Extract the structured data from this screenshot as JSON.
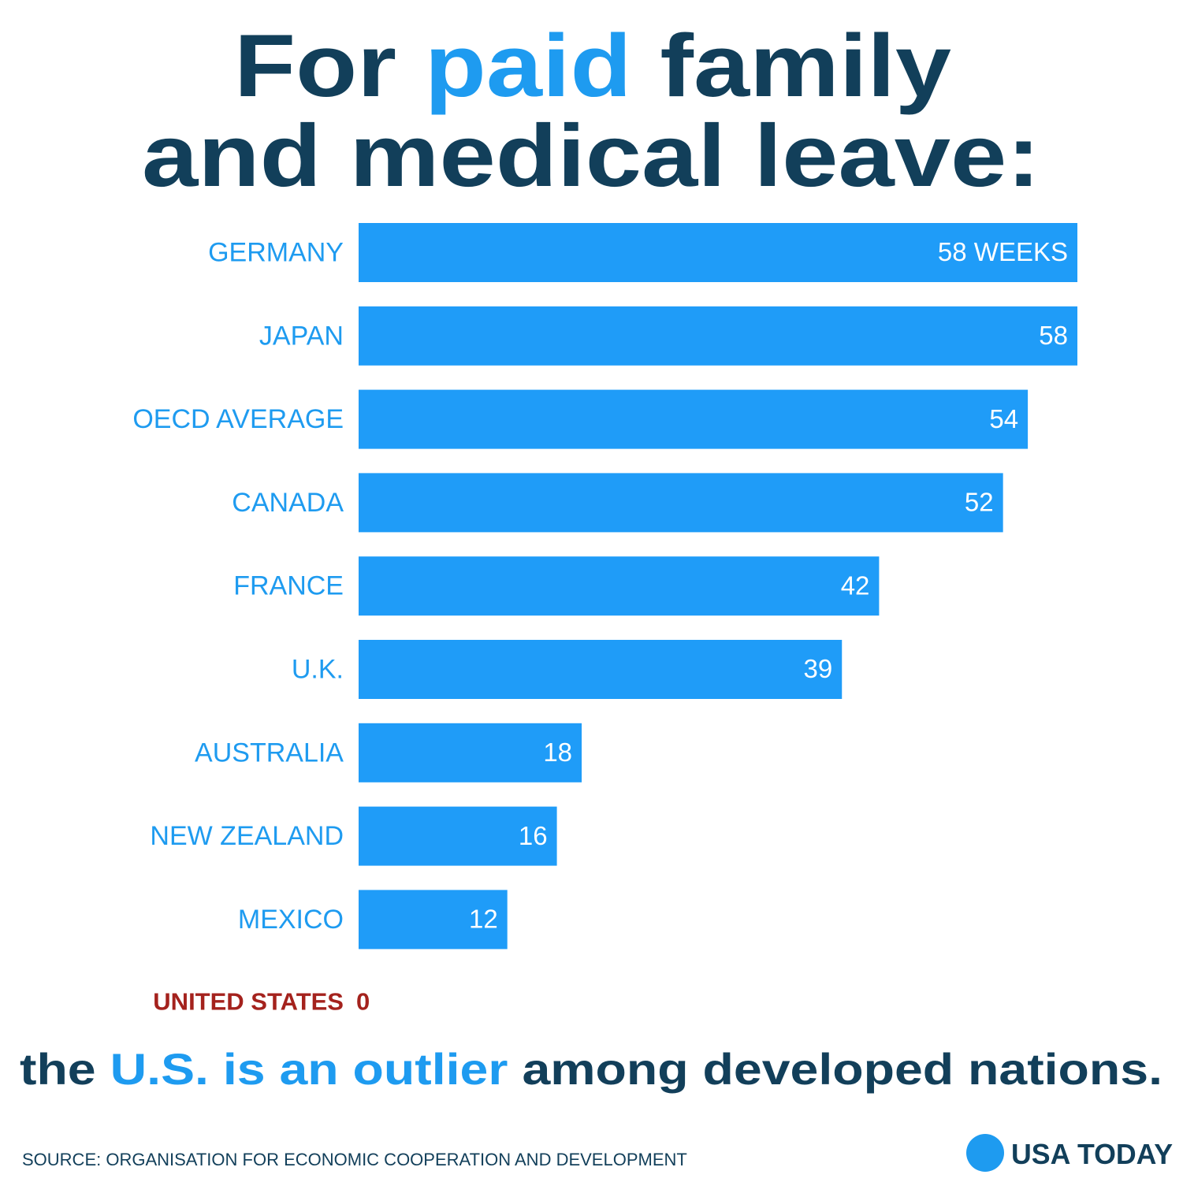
{
  "chart_data": {
    "type": "bar",
    "orientation": "horizontal",
    "title": [
      [
        {
          "text": "For",
          "highlight": false
        },
        {
          "text": "paid",
          "highlight": true
        },
        {
          "text": "family",
          "highlight": false
        }
      ],
      [
        {
          "text": "and medical leave:",
          "highlight": false
        }
      ]
    ],
    "categories": [
      "GERMANY",
      "JAPAN",
      "OECD AVERAGE",
      "CANADA",
      "FRANCE",
      "U.K.",
      "AUSTRALIA",
      "NEW ZEALAND",
      "MEXICO",
      "UNITED STATES"
    ],
    "values": [
      58,
      58,
      54,
      52,
      42,
      39,
      18,
      16,
      12,
      0
    ],
    "value_labels": [
      "58 WEEKS",
      "58",
      "54",
      "52",
      "42",
      "39",
      "18",
      "16",
      "12",
      "0"
    ],
    "xlim": [
      0,
      58
    ],
    "color": "#1f9cf8",
    "label_color": "#1e9bf0",
    "zero_color": "#a4221d",
    "text_color": "#123f5a",
    "highlight_color": "#1e9bf0",
    "footer": [
      {
        "text": "the",
        "highlight": false
      },
      {
        "text": "U.S. is an outlier",
        "highlight": true
      },
      {
        "text": "among developed nations.",
        "highlight": false
      }
    ],
    "source": "SOURCE: ORGANISATION FOR ECONOMIC COOPERATION AND DEVELOPMENT",
    "logo": "USA TODAY"
  }
}
